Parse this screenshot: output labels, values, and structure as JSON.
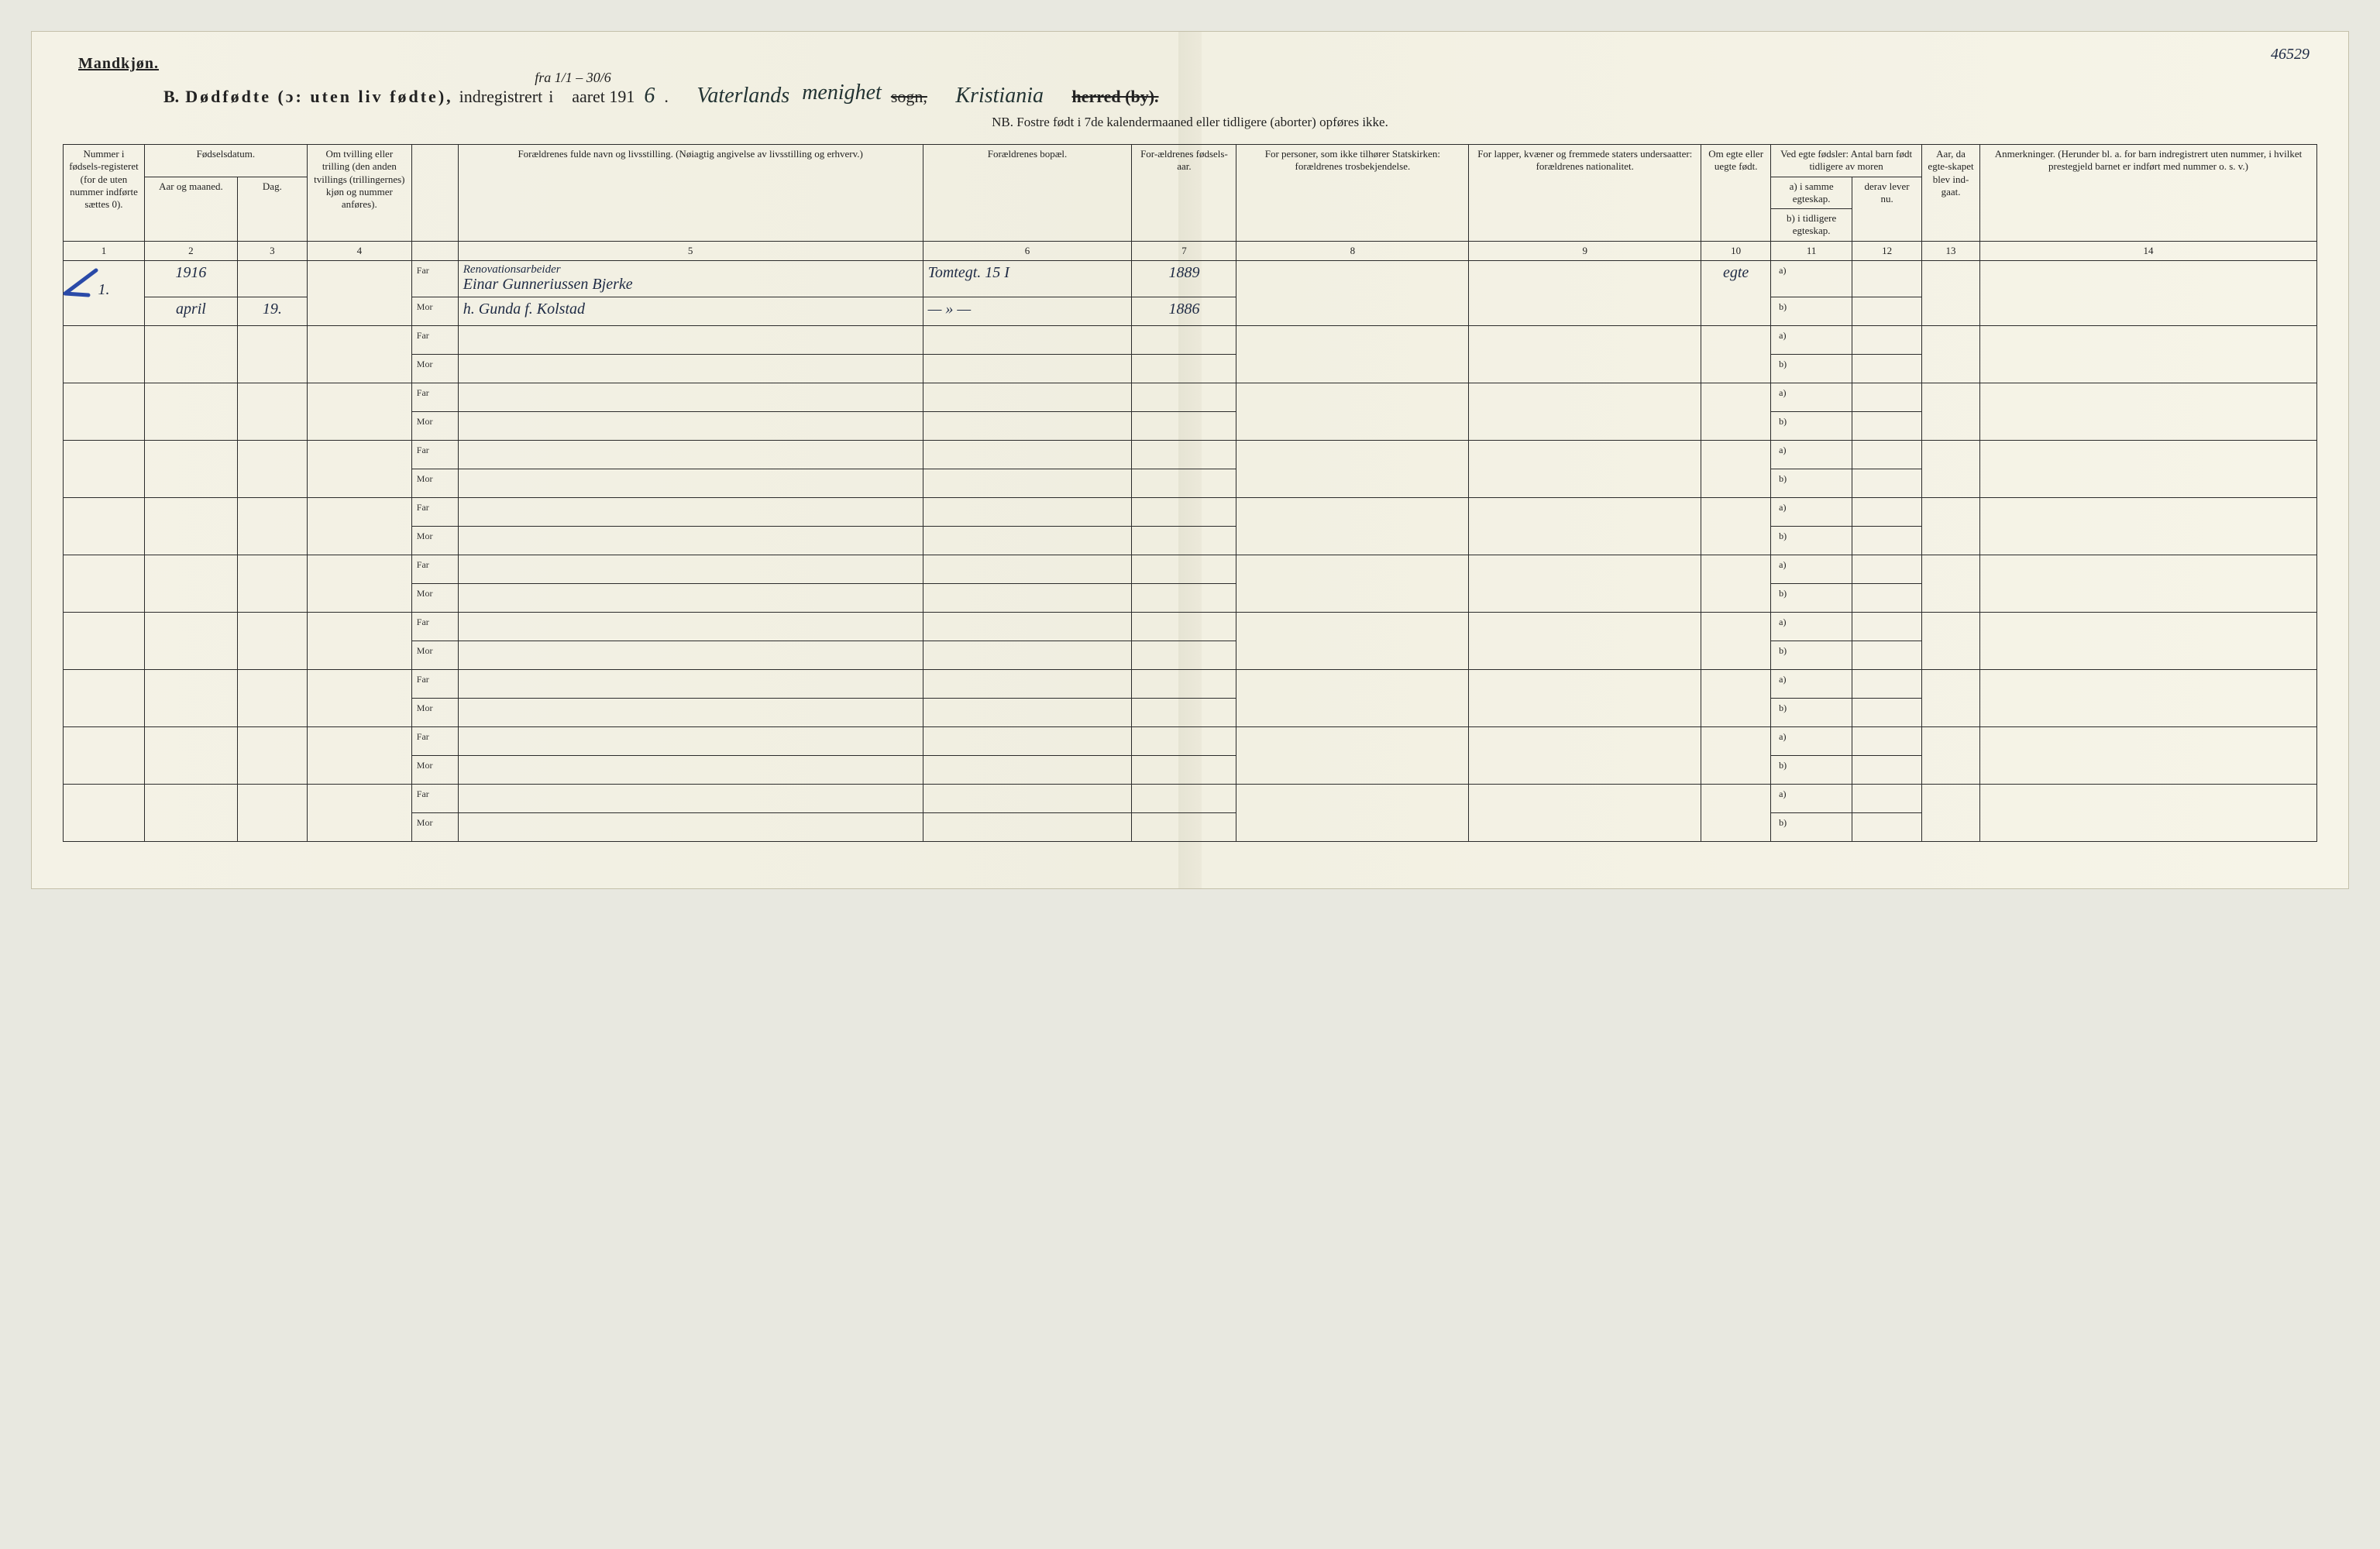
{
  "page_number_handwritten": "46529",
  "header": {
    "gender": "Mandkjøn.",
    "section_letter": "B.",
    "title_spaced": "Dødfødte (ɔ: uten liv fødte),",
    "registered": "indregistrert",
    "date_handwritten_above": "fra 1/1 – 30/6",
    "i": "i",
    "aaret": "aaret 191",
    "year_digit": "6",
    "parish_hand1": "Vaterlands",
    "menighet_hand": "menighet",
    "sogn_strikethrough": "sogn,",
    "city_hand": "Kristiania",
    "herred_by_strikethrough": "herred (by).",
    "nb": "NB.  Fostre født i 7de kalendermaaned eller tidligere (aborter) opføres ikke."
  },
  "columns": {
    "c1": "Nummer i fødsels-registeret (for de uten nummer indførte sættes 0).",
    "c2_group": "Fødselsdatum.",
    "c2a": "Aar og maaned.",
    "c2b": "Dag.",
    "c3": "Om tvilling eller trilling (den anden tvillings (trillingernes) kjøn og nummer anføres).",
    "c4_label": "",
    "c5": "Forældrenes fulde navn og livsstilling.\n(Nøiagtig angivelse av livsstilling og erhverv.)",
    "c6": "Forældrenes bopæl.",
    "c7": "For-ældrenes fødsels-aar.",
    "c8": "For personer, som ikke tilhører Statskirken: forældrenes trosbekjendelse.",
    "c9": "For lapper, kvæner og fremmede staters undersaatter: forældrenes nationalitet.",
    "c10": "Om egte eller uegte født.",
    "c11_group": "Ved egte fødsler: Antal barn født tidligere av moren",
    "c11a": "a) i samme egteskap.",
    "c11b": "b) i tidligere egteskap.",
    "c12": "derav lever nu.",
    "c13": "Aar, da egte-skapet blev ind-gaat.",
    "c14": "Anmerkninger.\n(Herunder bl. a. for barn indregistrert uten nummer, i hvilket prestegjeld barnet er indført med nummer o. s. v.)"
  },
  "column_numbers": [
    "1",
    "2",
    "3",
    "4",
    "",
    "5",
    "6",
    "7",
    "8",
    "9",
    "10",
    "11",
    "12",
    "13",
    "14"
  ],
  "sublabels": {
    "far": "Far",
    "mor": "Mor",
    "a": "a)",
    "b": "b)"
  },
  "entries": [
    {
      "num": "1.",
      "year": "1916",
      "month": "april",
      "day": "19.",
      "far_line1_occupation": "Renovationsarbeider",
      "far_name": "Einar Gunneriussen Bjerke",
      "mor_name": "h. Gunda f. Kolstad",
      "address_far": "Tomtegt. 15 I",
      "address_mor": "— » —",
      "far_birth": "1889",
      "mor_birth": "1886",
      "legit": "egte"
    }
  ],
  "blank_rows": 9,
  "style": {
    "background_color": "#f2f0e2",
    "border_color": "#2b2b2b",
    "handwriting_color": "#1e2a44",
    "header_font_size_pt": 14,
    "body_font_size_pt": 10
  }
}
